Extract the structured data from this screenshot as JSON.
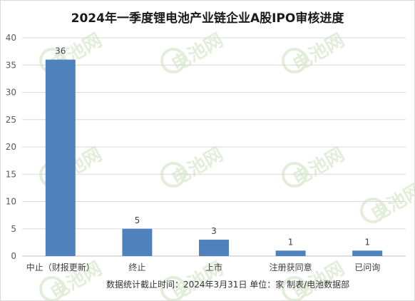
{
  "chart_data": {
    "type": "bar",
    "title": "2024年一季度锂电池产业链企业A股IPO审核进度",
    "categories": [
      "中止（财报更新）",
      "终止",
      "上市",
      "注册获同意",
      "已问询"
    ],
    "values": [
      36,
      5,
      3,
      1,
      1
    ],
    "ylim": [
      0,
      40
    ],
    "yticks": [
      0,
      5,
      10,
      15,
      20,
      25,
      30,
      35,
      40
    ],
    "grid": true,
    "bar_color": "#4f81bd",
    "note": "数据统计截止时间：2024年3月31日 单位：家 制表/电池数据部",
    "watermark": "电池网"
  }
}
